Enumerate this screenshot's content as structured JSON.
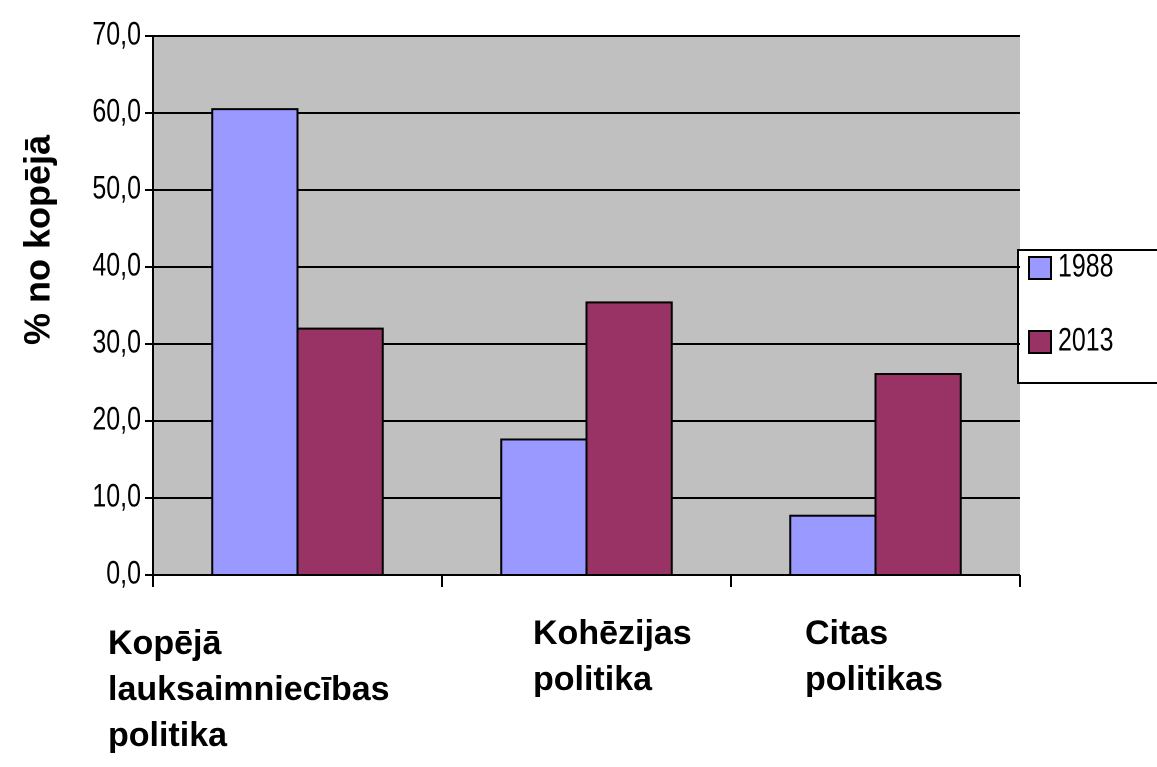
{
  "chart_data": {
    "type": "bar",
    "y_label": "% no kopējā",
    "categories": [
      "Kopējā lauksaimniecības politika",
      "Kohēzijas politika",
      "Citas politikas"
    ],
    "series": [
      {
        "name": "1988",
        "color": "#9999ff",
        "values": [
          60.5,
          17.6,
          7.7
        ]
      },
      {
        "name": "2013",
        "color": "#993366",
        "values": [
          32.0,
          35.4,
          26.1
        ]
      }
    ],
    "ylim": [
      0,
      70
    ],
    "yticks": [
      {
        "value": 0,
        "label": "0,0"
      },
      {
        "value": 10,
        "label": "10,0"
      },
      {
        "value": 20,
        "label": "20,0"
      },
      {
        "value": 30,
        "label": "30,0"
      },
      {
        "value": 40,
        "label": "40,0"
      },
      {
        "value": 50,
        "label": "50,0"
      },
      {
        "value": 60,
        "label": "60,0"
      },
      {
        "value": 70,
        "label": "70,0"
      }
    ],
    "grid": true,
    "legend": "right"
  }
}
